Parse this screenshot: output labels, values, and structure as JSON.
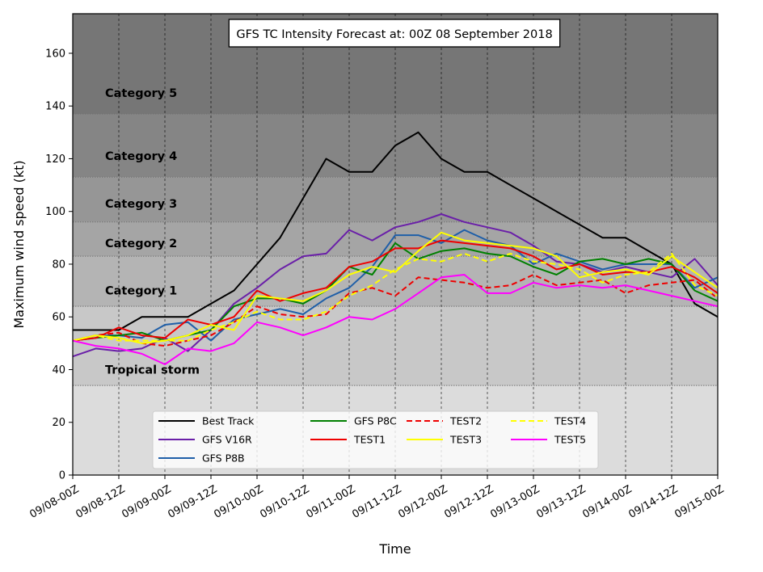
{
  "chart_data": {
    "type": "line",
    "title": "GFS TC Intensity Forecast at: 00Z 08 September 2018",
    "xlabel": "Time",
    "ylabel": "Maximum wind speed (kt)",
    "ylim": [
      0,
      175
    ],
    "yticks": [
      0,
      20,
      40,
      60,
      80,
      100,
      120,
      140,
      160
    ],
    "xlim": [
      0,
      168
    ],
    "x_tick_labels": [
      "09/08-00Z",
      "09/08-12Z",
      "09/09-00Z",
      "09/09-12Z",
      "09/10-00Z",
      "09/10-12Z",
      "09/11-00Z",
      "09/11-12Z",
      "09/12-00Z",
      "09/12-12Z",
      "09/13-00Z",
      "09/13-12Z",
      "09/14-00Z",
      "09/14-12Z",
      "09/15-00Z"
    ],
    "x_tick_hours": [
      0,
      12,
      24,
      36,
      48,
      60,
      72,
      84,
      96,
      108,
      120,
      132,
      144,
      156,
      168
    ],
    "grid": "vertical dashed",
    "legend_position": "bottom-center",
    "legend_columns": 4,
    "bands": [
      {
        "label": "",
        "from": 0,
        "to": 34,
        "color": "#dcdcdc"
      },
      {
        "label": "Tropical storm",
        "from": 34,
        "to": 64,
        "color": "#c8c8c8"
      },
      {
        "label": "Category 1",
        "from": 64,
        "to": 83,
        "color": "#b4b4b4"
      },
      {
        "label": "Category 2",
        "from": 83,
        "to": 96,
        "color": "#a5a5a5"
      },
      {
        "label": "Category 3",
        "from": 96,
        "to": 113,
        "color": "#969696"
      },
      {
        "label": "Category 4",
        "from": 113,
        "to": 137,
        "color": "#858585"
      },
      {
        "label": "Category 5",
        "from": 137,
        "to": 175,
        "color": "#767676"
      }
    ],
    "band_label_y": {
      "Tropical storm": 40,
      "Category 1": 70,
      "Category 2": 88,
      "Category 3": 103,
      "Category 4": 121,
      "Category 5": 145
    },
    "x_step_hours": 6,
    "series": [
      {
        "name": "Best Track",
        "color": "#000000",
        "dash": "solid",
        "values": [
          55,
          55,
          55,
          60,
          60,
          60,
          65,
          70,
          80,
          90,
          105,
          120,
          115,
          115,
          125,
          130,
          120,
          115,
          115,
          110,
          105,
          100,
          95,
          90,
          90,
          85,
          80,
          65,
          60
        ]
      },
      {
        "name": "GFS V16R",
        "color": "#6a1fa8",
        "dash": "solid",
        "values": [
          45,
          48,
          47,
          48,
          52,
          47,
          55,
          65,
          71,
          78,
          83,
          84,
          93,
          89,
          94,
          96,
          99,
          96,
          94,
          92,
          87,
          81,
          80,
          77,
          79,
          77,
          75,
          82,
          72
        ]
      },
      {
        "name": "GFS P8B",
        "color": "#1f5fa8",
        "dash": "solid",
        "values": [
          51,
          53,
          53,
          52,
          57,
          58,
          51,
          59,
          61,
          63,
          61,
          67,
          71,
          79,
          91,
          91,
          88,
          93,
          89,
          87,
          80,
          84,
          81,
          78,
          80,
          80,
          80,
          71,
          75
        ]
      },
      {
        "name": "GFS P8C",
        "color": "#008000",
        "dash": "solid",
        "values": [
          51,
          52,
          53,
          54,
          51,
          53,
          55,
          64,
          67,
          67,
          65,
          70,
          79,
          76,
          88,
          82,
          85,
          86,
          84,
          83,
          79,
          76,
          81,
          82,
          80,
          82,
          80,
          70,
          66
        ]
      },
      {
        "name": "TEST1",
        "color": "#ee0000",
        "dash": "solid",
        "values": [
          51,
          52,
          56,
          53,
          52,
          59,
          57,
          60,
          70,
          66,
          69,
          71,
          79,
          81,
          86,
          86,
          89,
          88,
          87,
          86,
          83,
          78,
          80,
          76,
          77,
          77,
          79,
          75,
          69
        ]
      },
      {
        "name": "TEST2",
        "color": "#ee0000",
        "dash": "dashed",
        "values": [
          51,
          53,
          54,
          50,
          49,
          51,
          53,
          58,
          64,
          61,
          60,
          61,
          69,
          71,
          68,
          75,
          74,
          73,
          71,
          72,
          76,
          72,
          73,
          74,
          69,
          72,
          73,
          74,
          67
        ]
      },
      {
        "name": "TEST3",
        "color": "#ffff00",
        "dash": "solid",
        "values": [
          51,
          53,
          52,
          50,
          51,
          53,
          57,
          55,
          68,
          67,
          66,
          70,
          76,
          79,
          77,
          85,
          92,
          89,
          88,
          87,
          86,
          83,
          75,
          77,
          78,
          76,
          83,
          77,
          71
        ]
      },
      {
        "name": "TEST4",
        "color": "#ffff00",
        "dash": "dashed",
        "values": [
          51,
          53,
          51,
          51,
          51,
          51,
          55,
          58,
          62,
          59,
          59,
          62,
          68,
          72,
          78,
          82,
          81,
          84,
          81,
          84,
          81,
          80,
          78,
          73,
          76,
          77,
          84,
          72,
          68
        ]
      },
      {
        "name": "TEST5",
        "color": "#ff00ff",
        "dash": "solid",
        "values": [
          51,
          49,
          48,
          46,
          42,
          48,
          47,
          50,
          58,
          56,
          53,
          56,
          60,
          59,
          63,
          69,
          75,
          76,
          69,
          69,
          73,
          71,
          72,
          71,
          72,
          70,
          68,
          66,
          64
        ]
      }
    ]
  }
}
